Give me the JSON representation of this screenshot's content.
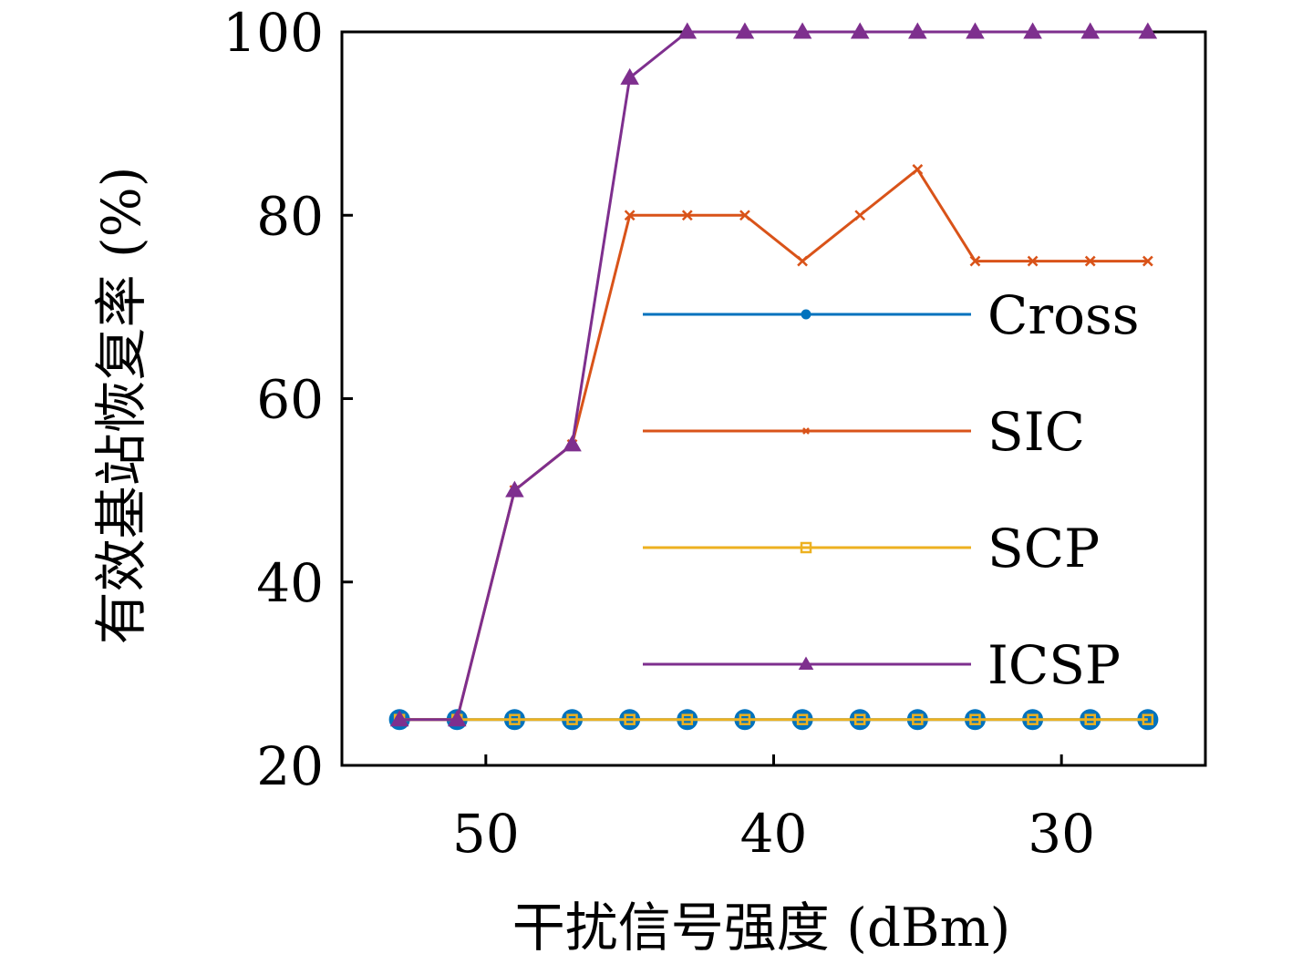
{
  "chart_data": {
    "type": "line",
    "xlabel": "干扰信号强度 (dBm)",
    "ylabel": "有效基站恢复率 (%)",
    "x": [
      53,
      51,
      49,
      47,
      45,
      43,
      41,
      39,
      37,
      35,
      33,
      31,
      29,
      27
    ],
    "xlim": [
      25,
      55
    ],
    "xdir": "reverse",
    "ylim": [
      20,
      100
    ],
    "xticks": [
      50,
      40,
      30
    ],
    "yticks": [
      20,
      40,
      60,
      80,
      100
    ],
    "grid": false,
    "legend": "east",
    "series": [
      {
        "name": "Cross",
        "color": "#0072BD",
        "marker": "circle",
        "values": [
          25,
          25,
          25,
          25,
          25,
          25,
          25,
          25,
          25,
          25,
          25,
          25,
          25,
          25
        ]
      },
      {
        "name": "SIC",
        "color": "#D95319",
        "marker": "x",
        "values": [
          25,
          25,
          50,
          55,
          80,
          80,
          80,
          75,
          80,
          85,
          75,
          75,
          75,
          75
        ]
      },
      {
        "name": "SCP",
        "color": "#EDB120",
        "marker": "square",
        "values": [
          25,
          25,
          25,
          25,
          25,
          25,
          25,
          25,
          25,
          25,
          25,
          25,
          25,
          25
        ]
      },
      {
        "name": "ICSP",
        "color": "#7E2F8E",
        "marker": "triangle",
        "values": [
          25,
          25,
          50,
          55,
          95,
          100,
          100,
          100,
          100,
          100,
          100,
          100,
          100,
          100
        ]
      }
    ]
  }
}
